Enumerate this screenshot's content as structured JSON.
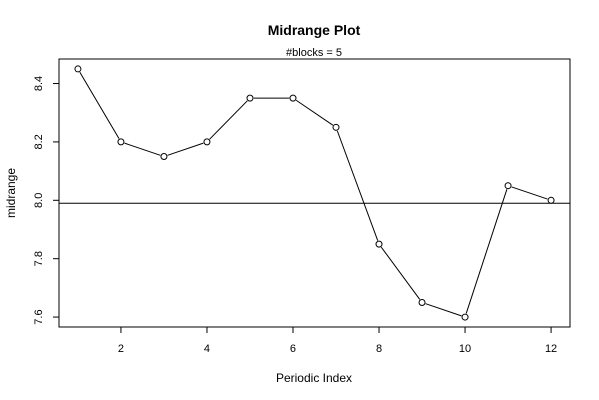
{
  "chart_data": {
    "type": "line",
    "title": "Midrange Plot",
    "subtitle": "#blocks =  5",
    "xlabel": "Periodic Index",
    "ylabel": "midrange",
    "x": [
      1,
      2,
      3,
      4,
      5,
      6,
      7,
      8,
      9,
      10,
      11,
      12
    ],
    "y": [
      8.45,
      8.2,
      8.15,
      8.2,
      8.35,
      8.35,
      8.25,
      7.85,
      7.65,
      7.6,
      8.05,
      8.0
    ],
    "xlim": [
      0.56,
      12.44
    ],
    "ylim": [
      7.566,
      8.484
    ],
    "xticks": [
      2,
      4,
      6,
      8,
      10,
      12
    ],
    "yticks": [
      7.6,
      7.8,
      8.0,
      8.2,
      8.4
    ],
    "xtick_labels": [
      "2",
      "4",
      "6",
      "8",
      "10",
      "12"
    ],
    "ytick_labels": [
      "7.6",
      "7.8",
      "8.0",
      "8.2",
      "8.4"
    ],
    "reference_line": 7.99,
    "markers": "open-circle",
    "grid": false,
    "legend": "none"
  }
}
